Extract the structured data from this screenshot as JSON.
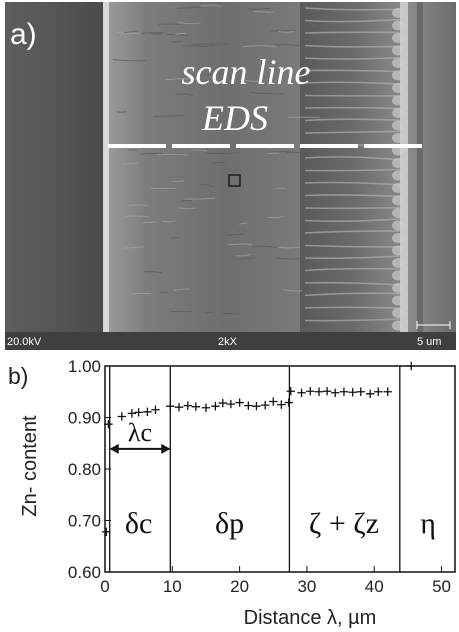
{
  "panel_a": {
    "label": "a)",
    "annotation_line1": "scan line",
    "annotation_line2": "EDS",
    "info_bar": {
      "voltage": "20.0kV",
      "magnification": "2kX",
      "scale": "5 um"
    }
  },
  "panel_b": {
    "label": "b)"
  },
  "chart_data": {
    "type": "scatter",
    "title": "",
    "xlabel": "Distance λ, µm",
    "ylabel": "Zn- content",
    "xlim": [
      0,
      52
    ],
    "ylim": [
      0.6,
      1.0
    ],
    "x_ticks": [
      "0",
      "10",
      "20",
      "30",
      "40",
      "50"
    ],
    "x_tick_values": [
      0,
      10,
      20,
      30,
      40,
      50
    ],
    "y_ticks": [
      "0.60",
      "0.70",
      "0.80",
      "0.90",
      "1.00"
    ],
    "y_tick_values": [
      0.6,
      0.7,
      0.8,
      0.9,
      1.0
    ],
    "marker": "+",
    "x": [
      0.2,
      0.5,
      2.5,
      4.0,
      5.0,
      6.3,
      7.5,
      9.7,
      11.0,
      12.3,
      13.5,
      15.0,
      16.4,
      17.5,
      18.7,
      20.0,
      21.3,
      22.5,
      23.8,
      25.0,
      26.2,
      27.3,
      27.6,
      29.2,
      30.5,
      31.8,
      33.0,
      34.2,
      35.5,
      36.8,
      38.0,
      39.4,
      40.6,
      42.0,
      45.5
    ],
    "y": [
      0.678,
      0.887,
      0.902,
      0.908,
      0.91,
      0.911,
      0.915,
      0.922,
      0.92,
      0.923,
      0.921,
      0.919,
      0.922,
      0.928,
      0.926,
      0.929,
      0.923,
      0.922,
      0.924,
      0.931,
      0.925,
      0.929,
      0.951,
      0.948,
      0.951,
      0.95,
      0.951,
      0.948,
      0.95,
      0.949,
      0.95,
      0.946,
      0.95,
      0.95,
      1.0
    ],
    "boundaries_x": [
      0.7,
      9.7,
      27.4,
      43.8
    ],
    "annotation": {
      "text": "λc",
      "x_from": 0.7,
      "x_to": 9.7,
      "y": 0.839
    },
    "regions": [
      {
        "label": "δc",
        "x_center": 5.0
      },
      {
        "label": "δp",
        "x_center": 18.5
      },
      {
        "label": "ζ + ζz",
        "x_center": 35.5
      },
      {
        "label": "η",
        "x_center": 48.0
      }
    ]
  }
}
